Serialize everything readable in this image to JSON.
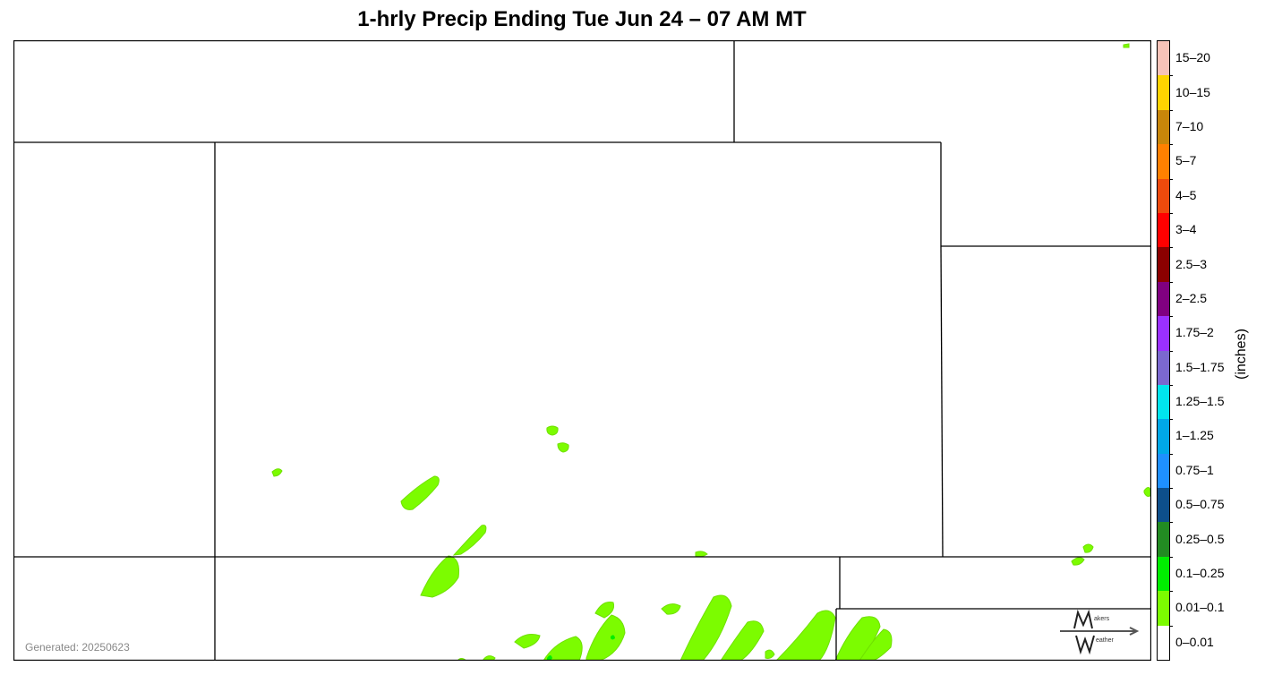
{
  "title": "1-hrly Precip Ending Tue Jun 24 – 07 AM MT",
  "generated": "Generated: 20250623",
  "colorbar": {
    "units": "(inches)",
    "bins": [
      {
        "label": "15–20",
        "color": "#f7c3b8"
      },
      {
        "label": "10–15",
        "color": "#ffd400"
      },
      {
        "label": "7–10",
        "color": "#c8860a"
      },
      {
        "label": "5–7",
        "color": "#ff8000"
      },
      {
        "label": "4–5",
        "color": "#ee4a0c"
      },
      {
        "label": "3–4",
        "color": "#ff0000"
      },
      {
        "label": "2.5–3",
        "color": "#8b0000"
      },
      {
        "label": "2–2.5",
        "color": "#800080"
      },
      {
        "label": "1.75–2",
        "color": "#9b30ff"
      },
      {
        "label": "1.5–1.75",
        "color": "#7b68cf"
      },
      {
        "label": "1.25–1.5",
        "color": "#00e5ee"
      },
      {
        "label": "1–1.25",
        "color": "#00a8e8"
      },
      {
        "label": "0.75–1",
        "color": "#1e90ff"
      },
      {
        "label": "0.5–0.75",
        "color": "#0d4f8b"
      },
      {
        "label": "0.25–0.5",
        "color": "#228b22"
      },
      {
        "label": "0.1–0.25",
        "color": "#00ee00"
      },
      {
        "label": "0.01–0.1",
        "color": "#7cfc00"
      },
      {
        "label": "0–0.01",
        "color": "#ffffff"
      }
    ]
  },
  "logo": {
    "top_text": "akers",
    "bottom_text": "eather"
  }
}
